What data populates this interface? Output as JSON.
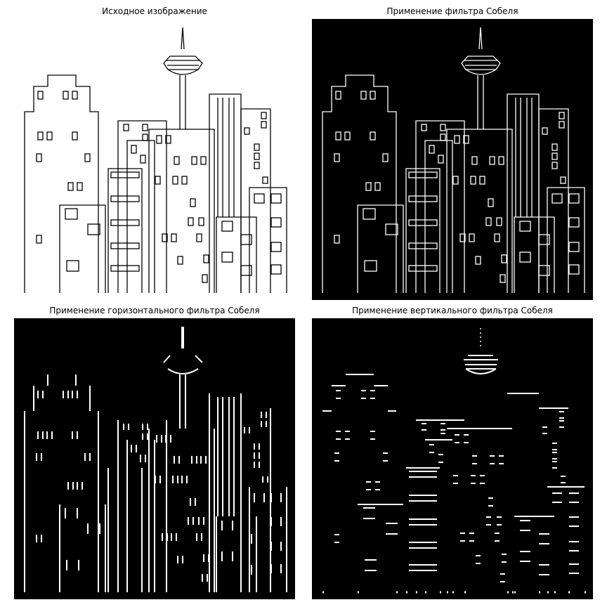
{
  "panels": {
    "original": {
      "title": "Исходное изображение"
    },
    "sobel": {
      "title": "Применение фильтра Собеля"
    },
    "sobel_horizontal": {
      "title": "Применение горизонтального фильтра Собеля"
    },
    "sobel_vertical": {
      "title": "Применение вертикального фильтра Собеля"
    }
  },
  "colors": {
    "figure_background": "#ffffff",
    "line_on_white": "#000000",
    "edge_background": "#000000",
    "edge_line": "#ffffff"
  }
}
